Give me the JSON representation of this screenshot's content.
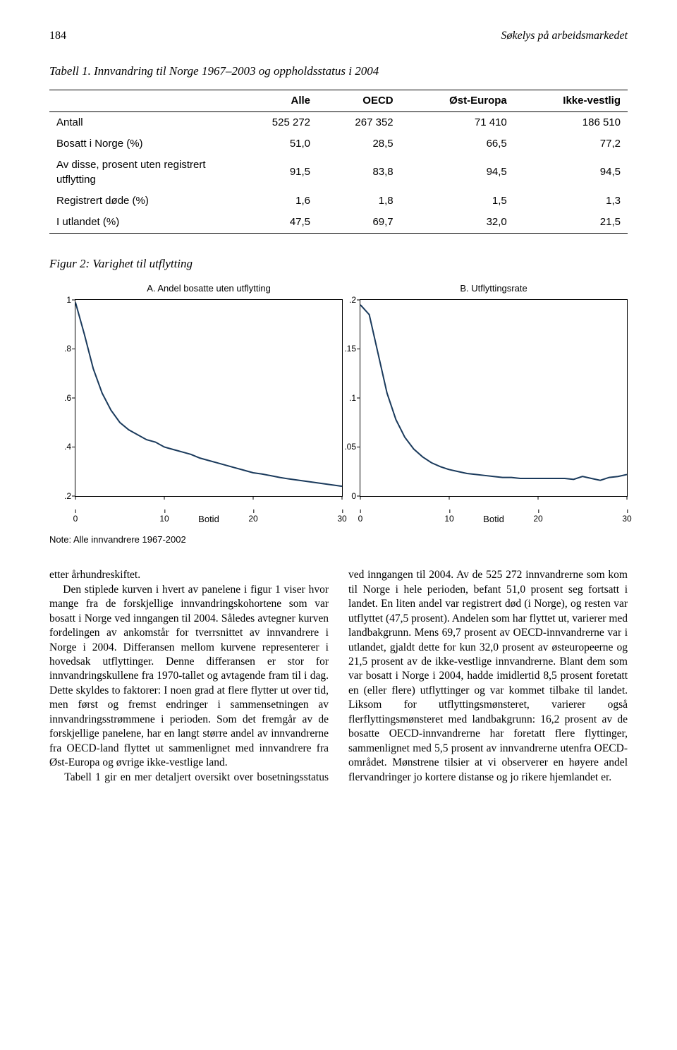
{
  "header": {
    "page_number": "184",
    "running_title": "Søkelys på arbeidsmarkedet"
  },
  "table": {
    "title": "Tabell 1. Innvandring til Norge 1967–2003 og oppholdsstatus i 2004",
    "columns": [
      "",
      "Alle",
      "OECD",
      "Øst-Europa",
      "Ikke-vestlig"
    ],
    "rows": [
      [
        "Antall",
        "525 272",
        "267 352",
        "71 410",
        "186 510"
      ],
      [
        "Bosatt i Norge (%)",
        "51,0",
        "28,5",
        "66,5",
        "77,2"
      ],
      [
        "Av disse, prosent uten registrert utflytting",
        "91,5",
        "83,8",
        "94,5",
        "94,5"
      ],
      [
        "Registrert døde (%)",
        "1,6",
        "1,8",
        "1,5",
        "1,3"
      ],
      [
        "I utlandet (%)",
        "47,5",
        "69,7",
        "32,0",
        "21,5"
      ]
    ]
  },
  "figure": {
    "title": "Figur 2: Varighet til utflytting",
    "note": "Note: Alle innvandrere 1967-2002",
    "panel_a": {
      "title": "A. Andel bosatte uten utflytting",
      "x_label": "Botid",
      "x_min": 0,
      "x_max": 30,
      "y_min": 0.2,
      "y_max": 1.0,
      "y_ticks": [
        ".2",
        ".4",
        ".6",
        ".8",
        "1"
      ],
      "y_tick_vals": [
        0.2,
        0.4,
        0.6,
        0.8,
        1.0
      ],
      "x_ticks": [
        "0",
        "10",
        "20",
        "30"
      ],
      "x_tick_vals": [
        0,
        10,
        20,
        30
      ],
      "line_color": "#1a3a5c",
      "line_width": 2,
      "data": [
        [
          0,
          0.99
        ],
        [
          1,
          0.86
        ],
        [
          2,
          0.72
        ],
        [
          3,
          0.62
        ],
        [
          4,
          0.55
        ],
        [
          5,
          0.5
        ],
        [
          6,
          0.47
        ],
        [
          7,
          0.45
        ],
        [
          8,
          0.43
        ],
        [
          9,
          0.42
        ],
        [
          10,
          0.4
        ],
        [
          11,
          0.39
        ],
        [
          12,
          0.38
        ],
        [
          13,
          0.37
        ],
        [
          14,
          0.355
        ],
        [
          15,
          0.345
        ],
        [
          16,
          0.335
        ],
        [
          17,
          0.325
        ],
        [
          18,
          0.315
        ],
        [
          19,
          0.305
        ],
        [
          20,
          0.295
        ],
        [
          21,
          0.29
        ],
        [
          22,
          0.283
        ],
        [
          23,
          0.276
        ],
        [
          24,
          0.27
        ],
        [
          25,
          0.265
        ],
        [
          26,
          0.26
        ],
        [
          27,
          0.255
        ],
        [
          28,
          0.25
        ],
        [
          29,
          0.245
        ],
        [
          30,
          0.24
        ]
      ]
    },
    "panel_b": {
      "title": "B. Utflyttingsrate",
      "x_label": "Botid",
      "x_min": 0,
      "x_max": 30,
      "y_min": 0,
      "y_max": 0.2,
      "y_ticks": [
        "0",
        ".05",
        ".1",
        ".15",
        ".2"
      ],
      "y_tick_vals": [
        0,
        0.05,
        0.1,
        0.15,
        0.2
      ],
      "x_ticks": [
        "0",
        "10",
        "20",
        "30"
      ],
      "x_tick_vals": [
        0,
        10,
        20,
        30
      ],
      "line_color": "#1a3a5c",
      "line_width": 2,
      "data": [
        [
          0,
          0.195
        ],
        [
          1,
          0.185
        ],
        [
          2,
          0.145
        ],
        [
          3,
          0.105
        ],
        [
          4,
          0.078
        ],
        [
          5,
          0.06
        ],
        [
          6,
          0.048
        ],
        [
          7,
          0.04
        ],
        [
          8,
          0.034
        ],
        [
          9,
          0.03
        ],
        [
          10,
          0.027
        ],
        [
          11,
          0.025
        ],
        [
          12,
          0.023
        ],
        [
          13,
          0.022
        ],
        [
          14,
          0.021
        ],
        [
          15,
          0.02
        ],
        [
          16,
          0.019
        ],
        [
          17,
          0.019
        ],
        [
          18,
          0.018
        ],
        [
          19,
          0.018
        ],
        [
          20,
          0.018
        ],
        [
          21,
          0.018
        ],
        [
          22,
          0.018
        ],
        [
          23,
          0.018
        ],
        [
          24,
          0.017
        ],
        [
          25,
          0.02
        ],
        [
          26,
          0.018
        ],
        [
          27,
          0.016
        ],
        [
          28,
          0.019
        ],
        [
          29,
          0.02
        ],
        [
          30,
          0.022
        ]
      ]
    }
  },
  "body": {
    "text": "etter århundreskiftet.\n    Den stiplede kurven i hvert av panelene i figur 1 viser hvor mange fra de forskjellige innvandringskohortene som var bosatt i Norge ved inngangen til 2004. Således avtegner kurven fordelingen av ankomstår for tverrsnittet av innvandrere i Norge i 2004. Differansen mellom kurvene representerer i hovedsak utflyttinger. Denne differansen er stor for innvandringskullene fra 1970-tallet og avtagende fram til i dag. Dette skyldes to faktorer: I noen grad at flere flytter ut over tid, men først og fremst endringer i sammensetningen av innvandringsstrømmene i perioden. Som det fremgår av de forskjellige panelene, har en langt større andel av innvandrerne fra OECD-land flyttet ut sammenlignet med innvandrere fra Øst-Europa og øvrige ikke-vestlige land.\n    Tabell 1 gir en mer detaljert oversikt over bosetningsstatus ved inngangen til 2004. Av de 525 272 innvandrerne som kom til Norge i hele perioden, befant 51,0 prosent seg fortsatt i landet. En liten andel var registrert død (i Norge), og resten var utflyttet (47,5 prosent). Andelen som har flyttet ut, varierer med landbakgrunn. Mens 69,7 prosent av OECD-innvandrerne var i utlandet, gjaldt dette for kun 32,0 prosent av østeuropeerne og 21,5 prosent av de ikke-vestlige innvandrerne. Blant dem som var bosatt i Norge i 2004, hadde imidlertid 8,5 prosent foretatt en (eller flere) utflyttinger og var kommet tilbake til landet. Liksom for utflyttingsmønsteret, varierer også flerflyttingsmønsteret med landbakgrunn: 16,2 prosent av de bosatte OECD-innvandrerne har foretatt flere flyttinger, sammenlignet med 5,5 prosent av innvandrerne utenfra OECD-området. Mønstrene tilsier at vi observerer en høyere andel flervandringer jo kortere distanse og jo rikere hjemlandet er."
  }
}
